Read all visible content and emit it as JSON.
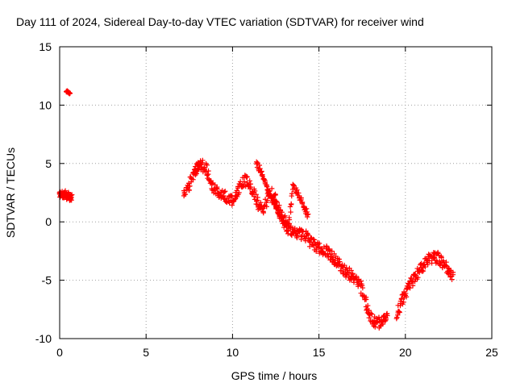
{
  "colors": {
    "series": "#ff0000",
    "grid": "#a0a0a0",
    "axis": "#000000",
    "background": "#ffffff"
  },
  "chart_data": {
    "type": "scatter",
    "title": "Day 111 of 2024, Sidereal Day-to-day VTEC variation (SDTVAR) for receiver wind",
    "xlabel": "GPS time / hours",
    "ylabel": "SDTVAR / TECUs",
    "xlim": [
      0,
      25
    ],
    "ylim": [
      -10,
      15
    ],
    "xticks": [
      0,
      5,
      10,
      15,
      20,
      25
    ],
    "yticks": [
      -10,
      -5,
      0,
      5,
      10,
      15
    ],
    "xtick_labels": [
      "0",
      "5",
      "10",
      "15",
      "20",
      "25"
    ],
    "ytick_labels": [
      "-10",
      "-5",
      "0",
      "5",
      "10",
      "15"
    ],
    "grid": true,
    "marker": "+",
    "series": [
      {
        "name": "SDTVAR",
        "tracks": [
          {
            "x": [
              0.0,
              0.1,
              0.2,
              0.3,
              0.4,
              0.5,
              0.6,
              0.7
            ],
            "y": [
              2.3,
              2.4,
              2.2,
              2.5,
              2.1,
              2.3,
              2.0,
              2.1
            ],
            "spread": 0.5
          },
          {
            "x": [
              0.4,
              0.5,
              0.6
            ],
            "y": [
              11.2,
              11.1,
              11.0
            ],
            "spread": 0.1
          },
          {
            "x": [
              7.2,
              7.5,
              7.8,
              8.0,
              8.2,
              8.5,
              8.8,
              9.1,
              9.4,
              9.7,
              10.0,
              10.3,
              10.6,
              10.9,
              11.2,
              11.5,
              11.8,
              12.1,
              12.4,
              12.7,
              13.0,
              13.3,
              13.6,
              13.9,
              14.2,
              14.5,
              14.8,
              15.1,
              15.4,
              15.7,
              16.0,
              16.3,
              16.6,
              16.9,
              17.2,
              17.5,
              17.8,
              18.1,
              18.4,
              18.7,
              19.0
            ],
            "y": [
              2.2,
              3.2,
              4.2,
              4.8,
              4.9,
              4.4,
              3.3,
              2.6,
              2.4,
              2.1,
              1.8,
              2.4,
              3.5,
              3.6,
              2.6,
              1.4,
              1.0,
              2.6,
              2.2,
              1.0,
              0.2,
              -0.6,
              -0.9,
              -1.0,
              -1.2,
              -1.7,
              -2.1,
              -2.3,
              -2.5,
              -2.9,
              -3.3,
              -3.9,
              -4.3,
              -4.6,
              -4.9,
              -5.9,
              -7.4,
              -8.5,
              -8.7,
              -8.4,
              -8.1
            ],
            "spread": 1.0
          },
          {
            "x": [
              11.4,
              11.7,
              12.0,
              12.3,
              12.6,
              12.9,
              13.2,
              13.5,
              13.8,
              14.1,
              14.4
            ],
            "y": [
              5.0,
              4.2,
              3.0,
              1.9,
              1.0,
              0.1,
              -0.9,
              3.0,
              2.4,
              1.4,
              0.4
            ],
            "spread": 0.5
          },
          {
            "x": [
              19.5,
              19.8,
              20.1,
              20.4,
              20.7,
              21.0,
              21.3,
              21.6,
              21.9,
              22.2,
              22.5,
              22.8
            ],
            "y": [
              -8.0,
              -6.7,
              -5.8,
              -5.0,
              -4.4,
              -3.8,
              -3.3,
              -3.0,
              -3.1,
              -3.5,
              -4.3,
              -4.8
            ],
            "spread": 1.0
          }
        ]
      }
    ]
  }
}
